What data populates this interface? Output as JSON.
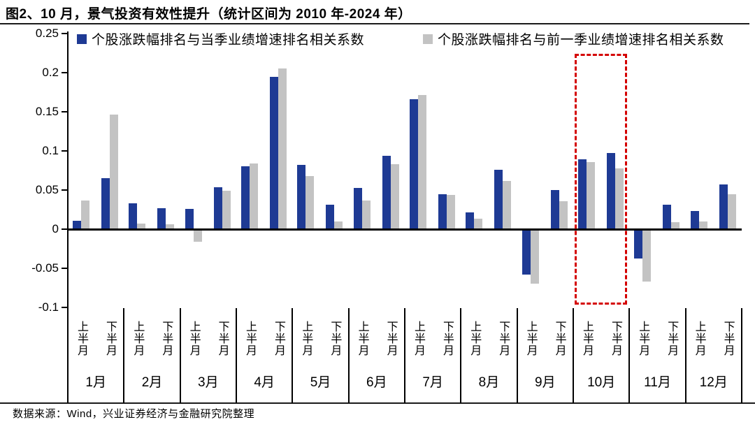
{
  "figure_title": "图2、10 月，景气投资有效性提升（统计区间为 2010 年-2024 年）",
  "source_note": "数据来源：Wind，兴业证券经济与金融研究院整理",
  "colors": {
    "series_current": "#1e3a94",
    "series_previous": "#c3c3c3",
    "highlight_box": "#d40000",
    "axis": "#000000"
  },
  "legend": [
    {
      "label": "个股涨跌幅排名与当季业绩增速排名相关系数",
      "color": "#1e3a94"
    },
    {
      "label": "个股涨跌幅排名与前一季业绩增速排名相关系数",
      "color": "#c3c3c3"
    }
  ],
  "chart_data": {
    "type": "bar",
    "title": "图2、10 月，景气投资有效性提升（统计区间为 2010 年-2024 年）",
    "months": [
      "1月",
      "2月",
      "3月",
      "4月",
      "5月",
      "6月",
      "7月",
      "8月",
      "9月",
      "10月",
      "11月",
      "12月"
    ],
    "half_labels": [
      "上半月",
      "下半月"
    ],
    "series": [
      {
        "name": "个股涨跌幅排名与当季业绩增速排名相关系数",
        "color": "#1e3a94",
        "values": [
          [
            0.011,
            0.065
          ],
          [
            0.033,
            0.027
          ],
          [
            0.026,
            0.054
          ],
          [
            0.08,
            0.195
          ],
          [
            0.082,
            0.031
          ],
          [
            0.053,
            0.094
          ],
          [
            0.166,
            0.045
          ],
          [
            0.021,
            0.076
          ],
          [
            -0.056,
            0.05
          ],
          [
            0.089,
            0.097
          ],
          [
            -0.036,
            0.031
          ],
          [
            0.023,
            0.057
          ]
        ]
      },
      {
        "name": "个股涨跌幅排名与前一季业绩增速排名相关系数",
        "color": "#c3c3c3",
        "values": [
          [
            0.037,
            0.146
          ],
          [
            0.007,
            0.006
          ],
          [
            -0.014,
            0.049
          ],
          [
            0.084,
            0.205
          ],
          [
            0.068,
            0.01
          ],
          [
            0.037,
            0.083
          ],
          [
            0.171,
            0.044
          ],
          [
            0.013,
            0.062
          ],
          [
            -0.068,
            0.036
          ],
          [
            0.086,
            0.078
          ],
          [
            -0.065,
            0.009
          ],
          [
            0.01,
            0.045
          ]
        ]
      }
    ],
    "ylim": [
      -0.1,
      0.25
    ],
    "yticks": [
      "0.25",
      "0.2",
      "0.15",
      "0.1",
      "0.05",
      "0",
      "-0.05",
      "-0.1"
    ],
    "grid": false,
    "legend_position": "top",
    "highlight_month": "10月",
    "highlight_color": "#d40000"
  }
}
